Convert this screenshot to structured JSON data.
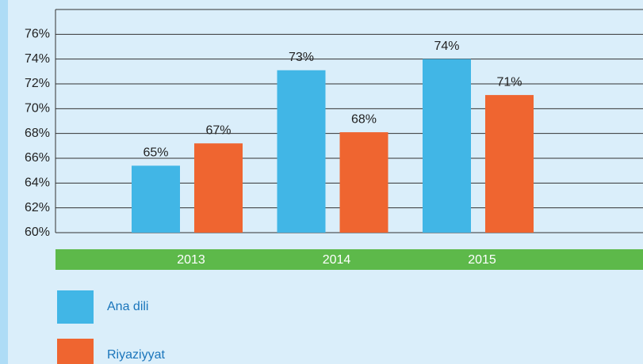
{
  "chart_data": {
    "type": "bar",
    "categories": [
      "2013",
      "2014",
      "2015"
    ],
    "series": [
      {
        "name": "Ana dili",
        "color": "#41b6e6",
        "values": [
          65.4,
          73.1,
          74
        ],
        "value_labels": [
          "65%",
          "73%",
          "74%"
        ]
      },
      {
        "name": "Riyaziyyat",
        "color": "#ef6530",
        "values": [
          67.2,
          68.1,
          71.1
        ],
        "value_labels": [
          "67%",
          "68%",
          "71%"
        ]
      }
    ],
    "ylim": [
      60,
      78
    ],
    "yticks": [
      {
        "value": 60,
        "label": "60%"
      },
      {
        "value": 62,
        "label": "62%"
      },
      {
        "value": 64,
        "label": "64%"
      },
      {
        "value": 66,
        "label": "66%"
      },
      {
        "value": 68,
        "label": "68%"
      },
      {
        "value": 70,
        "label": "70%"
      },
      {
        "value": 72,
        "label": "72%"
      },
      {
        "value": 74,
        "label": "74%"
      },
      {
        "value": 76,
        "label": "76%"
      }
    ],
    "grid": true
  }
}
